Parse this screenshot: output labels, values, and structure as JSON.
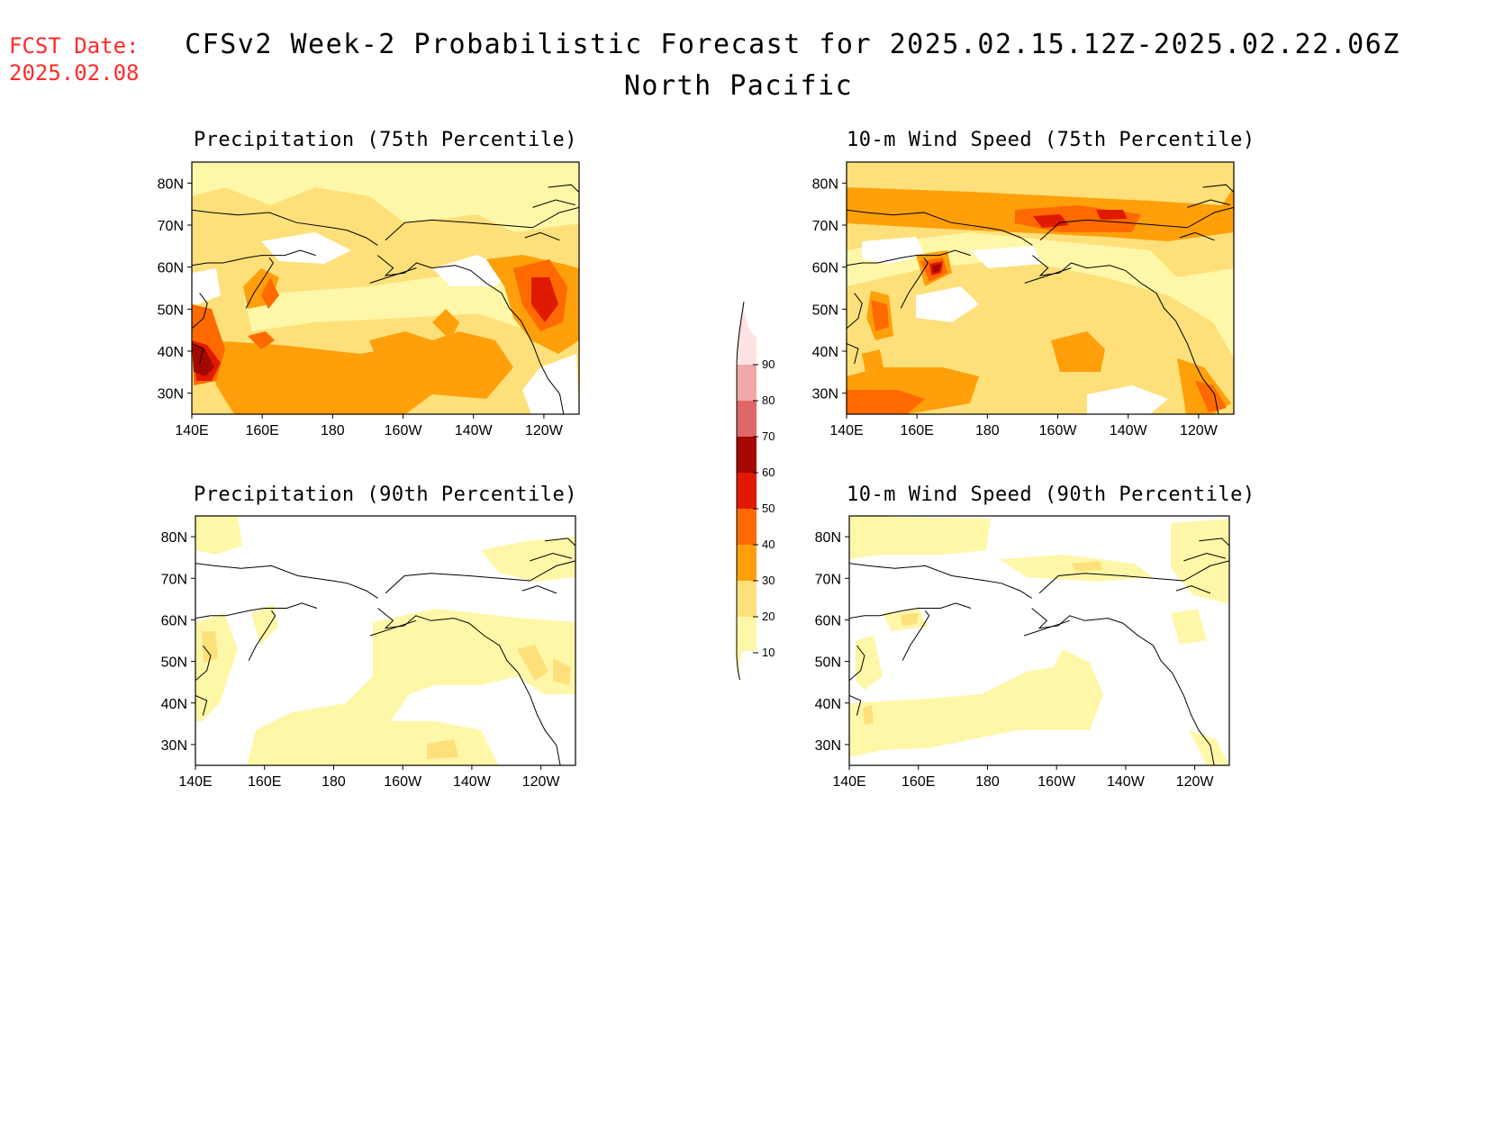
{
  "header": {
    "fcst_label": "FCST Date:",
    "fcst_date": "2025.02.08",
    "title": "CFSv2 Week-2 Probabilistic Forecast for 2025.02.15.12Z-2025.02.22.06Z",
    "subtitle": "North Pacific"
  },
  "colors": {
    "c10": "#fff7a8",
    "c20": "#fde07a",
    "c30": "#ff9f0a",
    "c40": "#ff6a00",
    "c50": "#e01a00",
    "c60": "#a40800",
    "c70": "#de6868",
    "c80": "#f2a8a8",
    "c90": "#fde3e3",
    "coast": "#000000"
  },
  "lat_labels": [
    "80N",
    "70N",
    "60N",
    "50N",
    "40N",
    "30N"
  ],
  "lon_labels": [
    "140E",
    "160E",
    "180",
    "160W",
    "140W",
    "120W"
  ],
  "colorbar": {
    "levels": [
      "10",
      "20",
      "30",
      "40",
      "50",
      "60",
      "70",
      "80",
      "90"
    ]
  },
  "panels": [
    {
      "id": "precip75",
      "title": "Precipitation (75th Percentile)"
    },
    {
      "id": "wind75",
      "title": "10-m Wind Speed (75th Percentile)"
    },
    {
      "id": "precip90",
      "title": "Precipitation (90th Percentile)"
    },
    {
      "id": "wind90",
      "title": "10-m Wind Speed (90th Percentile)"
    }
  ]
}
